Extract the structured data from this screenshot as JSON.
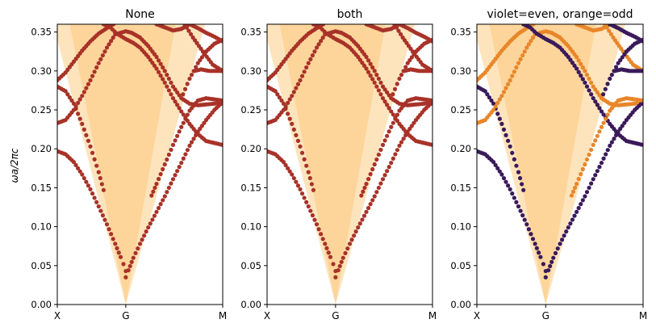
{
  "figure": {
    "ylabel": "ωa/2πc"
  },
  "colors": {
    "light_cone_outer": "#fde4bd",
    "light_cone_inner": "#fdd59a",
    "band_single": "#a83228",
    "band_even": "#3a1a5a",
    "band_odd": "#e8862a"
  },
  "chart_data": [
    {
      "type": "scatter",
      "title": "None",
      "color_mode": "single",
      "x_ticks": [
        "X",
        "G",
        "M"
      ],
      "y_ticks": [
        "0.00",
        "0.05",
        "0.10",
        "0.15",
        "0.20",
        "0.25",
        "0.30",
        "0.35"
      ],
      "ylim": [
        0,
        0.36
      ],
      "x_domain": [
        0,
        1
      ],
      "kG": 0.414,
      "light_cone": {
        "outer_edges": [
          0.36,
          0.37
        ],
        "inner_edges": [
          0.43,
          0.32
        ]
      },
      "series": [
        {
          "parity": "even",
          "values": [
            [
              0,
              0.197
            ],
            [
              0.05,
              0.193
            ],
            [
              0.1,
              0.183
            ],
            [
              0.15,
              0.167
            ],
            [
              0.2,
              0.148
            ],
            [
              0.25,
              0.126
            ],
            [
              0.3,
              0.103
            ],
            [
              0.35,
              0.078
            ],
            [
              0.383,
              0.061
            ],
            [
              0.4,
              0.052
            ],
            [
              0.414,
              0.043
            ]
          ]
        },
        {
          "parity": "even",
          "values": [
            [
              0,
              0.28
            ],
            [
              0.05,
              0.274
            ],
            [
              0.1,
              0.258
            ],
            [
              0.15,
              0.232
            ],
            [
              0.2,
              0.203
            ],
            [
              0.25,
              0.17
            ],
            [
              0.28,
              0.147
            ]
          ]
        },
        {
          "parity": "odd",
          "values": [
            [
              0,
              0.233
            ],
            [
              0.05,
              0.237
            ],
            [
              0.1,
              0.25
            ],
            [
              0.15,
              0.268
            ],
            [
              0.2,
              0.288
            ],
            [
              0.25,
              0.31
            ],
            [
              0.3,
              0.33
            ],
            [
              0.35,
              0.347
            ],
            [
              0.414,
              0.351
            ],
            [
              0.45,
              0.349
            ],
            [
              0.5,
              0.343
            ],
            [
              0.55,
              0.332
            ],
            [
              0.6,
              0.318
            ],
            [
              0.65,
              0.3
            ],
            [
              0.7,
              0.28
            ],
            [
              0.75,
              0.265
            ],
            [
              0.8,
              0.258
            ],
            [
              0.85,
              0.256
            ],
            [
              0.9,
              0.257
            ],
            [
              1,
              0.259
            ]
          ]
        },
        {
          "parity": "odd",
          "values": [
            [
              0,
              0.288
            ],
            [
              0.05,
              0.298
            ],
            [
              0.1,
              0.312
            ],
            [
              0.15,
              0.326
            ],
            [
              0.2,
              0.338
            ],
            [
              0.25,
              0.348
            ],
            [
              0.3,
              0.355
            ],
            [
              0.34,
              0.36
            ]
          ]
        },
        {
          "parity": "even",
          "values": [
            [
              0.28,
              0.36
            ],
            [
              0.32,
              0.356
            ],
            [
              0.36,
              0.348
            ],
            [
              0.414,
              0.341
            ],
            [
              0.46,
              0.336
            ],
            [
              0.5,
              0.33
            ],
            [
              0.55,
              0.318
            ],
            [
              0.6,
              0.303
            ],
            [
              0.65,
              0.285
            ],
            [
              0.7,
              0.265
            ],
            [
              0.75,
              0.248
            ],
            [
              0.8,
              0.232
            ],
            [
              0.85,
              0.219
            ],
            [
              0.9,
              0.21
            ],
            [
              1,
              0.205
            ]
          ]
        },
        {
          "parity": "even",
          "values": [
            [
              0.414,
              0.035
            ],
            [
              0.43,
              0.044
            ],
            [
              0.46,
              0.06
            ],
            [
              0.5,
              0.078
            ],
            [
              0.55,
              0.099
            ],
            [
              0.6,
              0.119
            ],
            [
              0.65,
              0.139
            ],
            [
              0.7,
              0.161
            ],
            [
              0.75,
              0.182
            ],
            [
              0.8,
              0.204
            ],
            [
              0.85,
              0.222
            ],
            [
              0.9,
              0.237
            ],
            [
              0.95,
              0.25
            ],
            [
              1,
              0.26
            ]
          ]
        },
        {
          "parity": "odd",
          "values": [
            [
              0.57,
              0.14
            ],
            [
              0.6,
              0.155
            ],
            [
              0.65,
              0.18
            ],
            [
              0.7,
              0.205
            ],
            [
              0.75,
              0.228
            ],
            [
              0.8,
              0.249
            ],
            [
              0.85,
              0.262
            ],
            [
              0.9,
              0.265
            ],
            [
              1,
              0.262
            ]
          ]
        },
        {
          "parity": "odd",
          "values": [
            [
              0.6,
              0.36
            ],
            [
              0.65,
              0.356
            ],
            [
              0.7,
              0.352
            ],
            [
              0.75,
              0.354
            ],
            [
              0.8,
              0.36
            ]
          ]
        },
        {
          "parity": "even",
          "values": [
            [
              0.8,
              0.36
            ],
            [
              0.85,
              0.355
            ],
            [
              0.9,
              0.349
            ],
            [
              0.95,
              0.344
            ],
            [
              1,
              0.338
            ]
          ]
        },
        {
          "parity": "odd",
          "values": [
            [
              0.77,
              0.36
            ],
            [
              0.82,
              0.343
            ],
            [
              0.88,
              0.325
            ],
            [
              0.94,
              0.308
            ],
            [
              1,
              0.3
            ]
          ]
        },
        {
          "parity": "even",
          "values": [
            [
              0.83,
              0.3
            ],
            [
              0.87,
              0.302
            ],
            [
              0.92,
              0.3
            ],
            [
              1,
              0.3
            ]
          ]
        },
        {
          "parity": "even",
          "values": [
            [
              0.76,
              0.27
            ],
            [
              0.8,
              0.29
            ],
            [
              0.85,
              0.31
            ],
            [
              0.9,
              0.325
            ],
            [
              0.95,
              0.335
            ],
            [
              1,
              0.34
            ]
          ]
        }
      ]
    },
    {
      "type": "scatter",
      "title": "both",
      "color_mode": "single",
      "x_ticks": [
        "X",
        "G",
        "M"
      ],
      "y_ticks": [
        "0.00",
        "0.05",
        "0.10",
        "0.15",
        "0.20",
        "0.25",
        "0.30",
        "0.35"
      ],
      "ylim": [
        0,
        0.36
      ],
      "x_domain": [
        0,
        1
      ],
      "kG": 0.414,
      "light_cone": {
        "outer_edges": [
          0.36,
          0.37
        ],
        "inner_edges": [
          0.43,
          0.32
        ]
      },
      "series": "same_as_panel_0"
    },
    {
      "type": "scatter",
      "title": "violet=even,  orange=odd",
      "color_mode": "parity",
      "x_ticks": [
        "X",
        "G",
        "M"
      ],
      "y_ticks": [
        "0.00",
        "0.05",
        "0.10",
        "0.15",
        "0.20",
        "0.25",
        "0.30",
        "0.35"
      ],
      "ylim": [
        0,
        0.36
      ],
      "x_domain": [
        0,
        1
      ],
      "kG": 0.414,
      "light_cone": {
        "outer_edges": [
          0.36,
          0.37
        ],
        "inner_edges": [
          0.43,
          0.32
        ]
      },
      "series": "same_as_panel_0"
    }
  ]
}
